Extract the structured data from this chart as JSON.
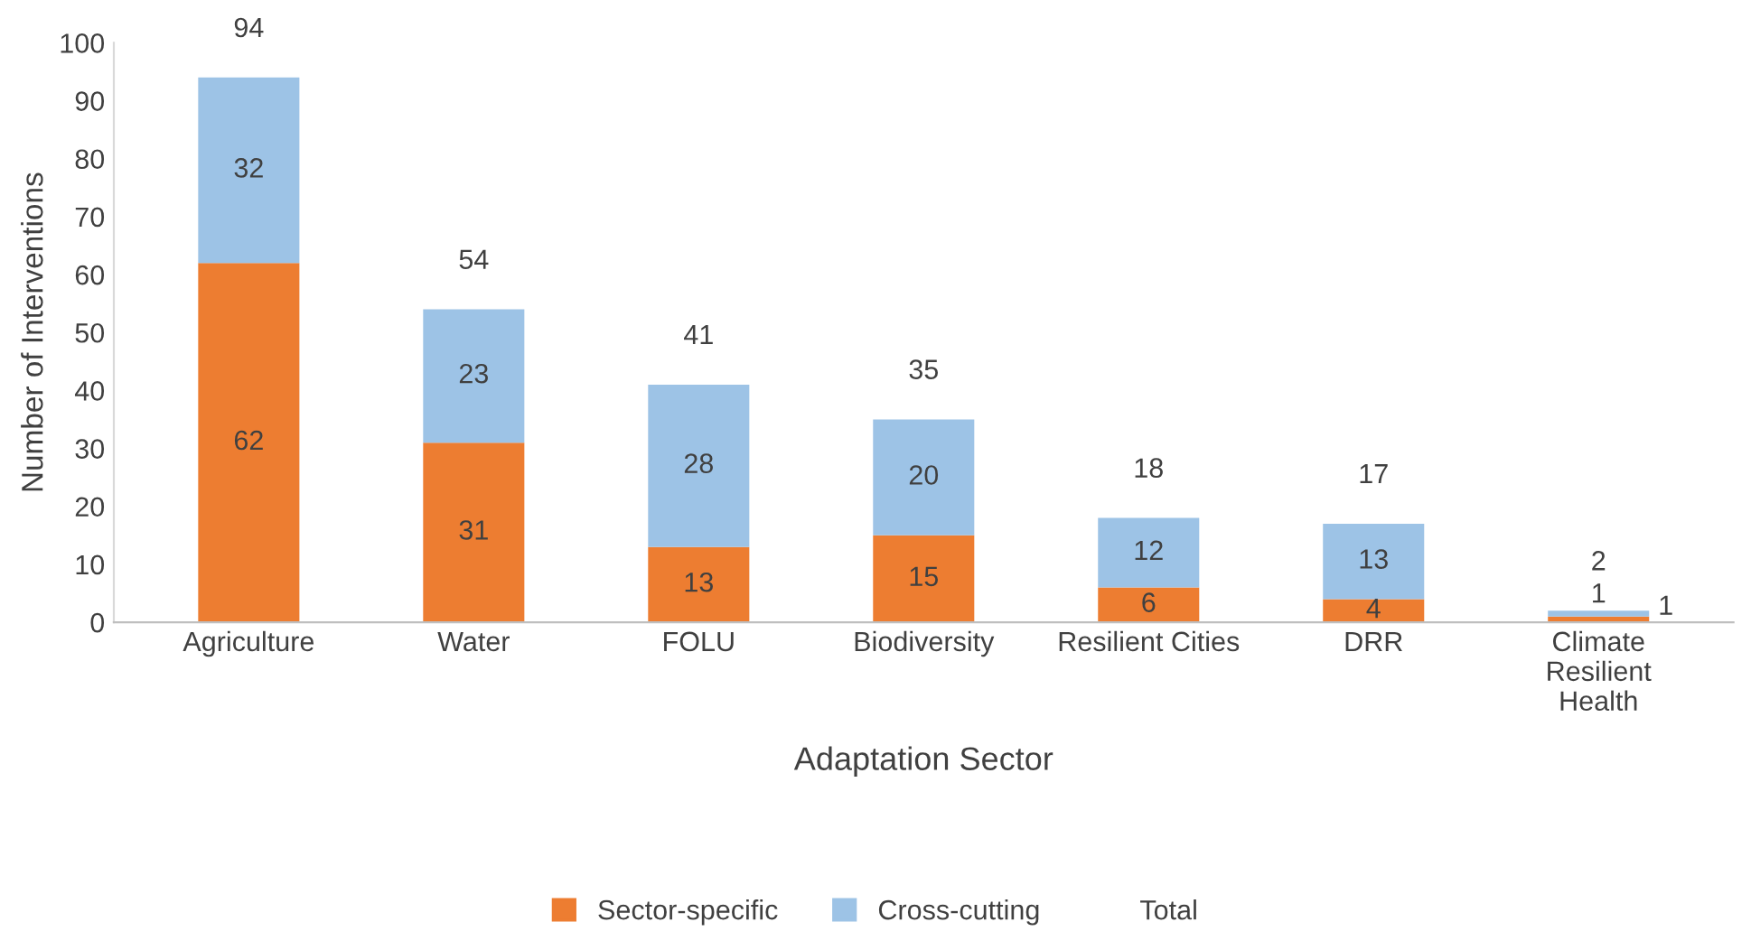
{
  "chart_data": {
    "type": "bar",
    "stacked": true,
    "xlabel": "Adaptation Sector",
    "ylabel": "Number of Interventions",
    "categories": [
      "Agriculture",
      "Water",
      "FOLU",
      "Biodiversity",
      "Resilient Cities",
      "DRR",
      "Climate Resilient Health"
    ],
    "series": [
      {
        "name": "Sector-specific",
        "color": "#ed7d31",
        "values": [
          62,
          31,
          13,
          15,
          6,
          4,
          1
        ]
      },
      {
        "name": "Cross-cutting",
        "color": "#9dc3e6",
        "values": [
          32,
          23,
          28,
          20,
          12,
          13,
          1
        ]
      }
    ],
    "annotations": [
      "Total"
    ],
    "totals": [
      "94",
      "54",
      "41",
      "35",
      "18",
      "17",
      "2"
    ],
    "data_labels": true,
    "ylim": [
      0,
      100
    ],
    "yticks": [
      0,
      10,
      20,
      30,
      40,
      50,
      60,
      70,
      80,
      90,
      100
    ],
    "grid": false,
    "legend": "bottom"
  }
}
